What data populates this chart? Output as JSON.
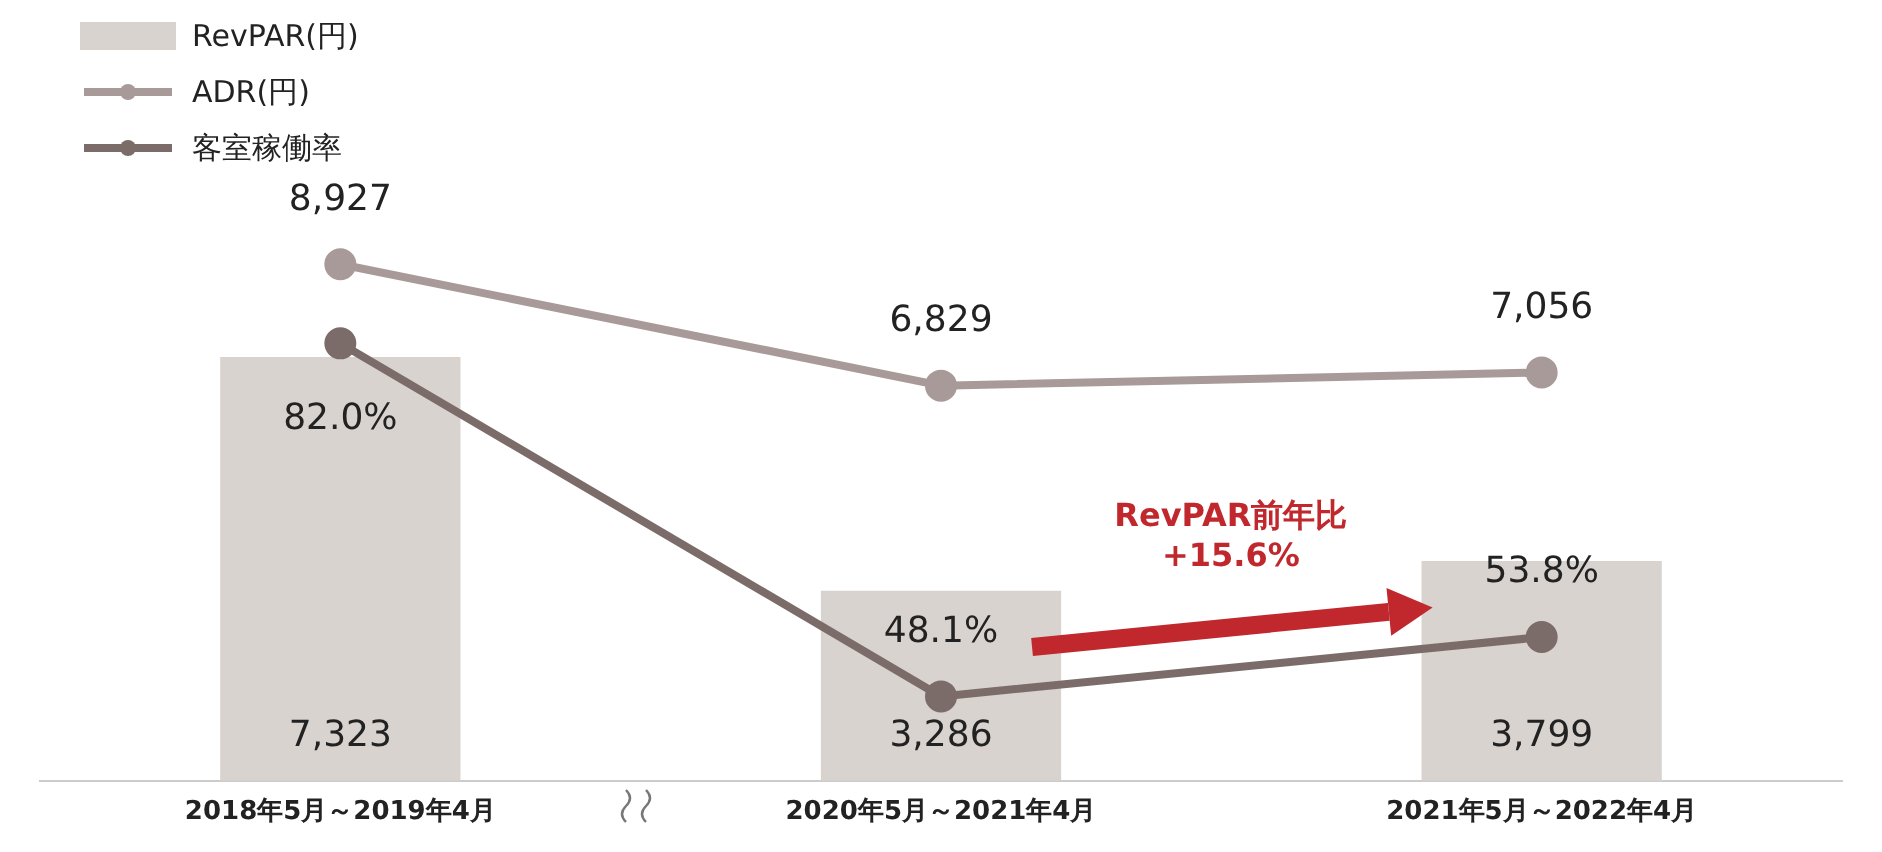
{
  "chart_data": {
    "type": "bar",
    "categories": [
      "2018年5月～2019年4月",
      "2020年5月～2021年4月",
      "2021年5月～2022年4月"
    ],
    "series": [
      {
        "name": "RevPAR(円)",
        "color": "#d9d3d0",
        "values": [
          7323,
          3286,
          3799
        ],
        "value_labels": [
          "7,323",
          "3,286",
          "3,799"
        ]
      },
      {
        "name": "ADR(円)",
        "type": "line",
        "color": "#a89a98",
        "values": [
          8927,
          6829,
          7056
        ],
        "value_labels": [
          "8,927",
          "6,829",
          "7,056"
        ]
      },
      {
        "name": "客室稼働率",
        "type": "line",
        "color": "#7b6c69",
        "axis": "y2",
        "values": [
          82.0,
          48.1,
          53.8
        ],
        "value_labels": [
          "82.0%",
          "48.1%",
          "53.8%"
        ]
      }
    ],
    "annotations": [
      "RevPAR前年比\n+15.6%"
    ],
    "legend": "top left",
    "marker": "circle",
    "grid": false
  }
}
